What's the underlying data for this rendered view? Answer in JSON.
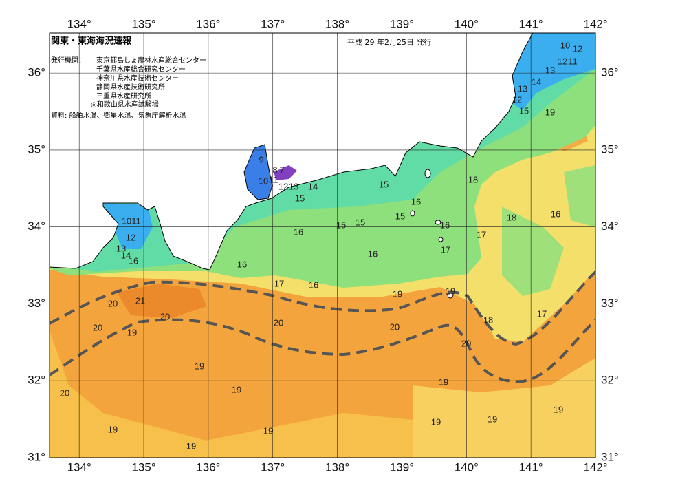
{
  "header": {
    "title": "関東・東海海況速報",
    "date": "平成 29 年2月25日 発行",
    "issuer_label": "発行機関：",
    "issuers": [
      "東京都島しょ農林水産総合センター",
      "千葉県水産総合研究センター",
      "神奈川県水産技術センター",
      "静岡県水産技術研究所",
      "三重県水産研究所",
      "◎和歌山県水産試験場"
    ],
    "sources": "資料: 船舶水温、衛星水温、気象庁解析水温"
  },
  "map": {
    "lonlim": [
      133.54,
      142
    ],
    "latlim": [
      31,
      36.52
    ],
    "lon_ticks": [
      {
        "value": 134,
        "label": "134°"
      },
      {
        "value": 135,
        "label": "135°"
      },
      {
        "value": 136,
        "label": "136°"
      },
      {
        "value": 137,
        "label": "137°"
      },
      {
        "value": 138,
        "label": "138°"
      },
      {
        "value": 139,
        "label": "139°"
      },
      {
        "value": 140,
        "label": "140°"
      },
      {
        "value": 141,
        "label": "141°"
      },
      {
        "value": 142,
        "label": "142°"
      }
    ],
    "lat_ticks": [
      {
        "value": 31,
        "label": "31°"
      },
      {
        "value": 32,
        "label": "32°"
      },
      {
        "value": 33,
        "label": "33°"
      },
      {
        "value": 34,
        "label": "34°"
      },
      {
        "value": 35,
        "label": "35°"
      },
      {
        "value": 36,
        "label": "36°"
      }
    ],
    "isotherm_labels": [
      10,
      12,
      12,
      11,
      13,
      14,
      13,
      12,
      15,
      19,
      9,
      10,
      11,
      8,
      7,
      12,
      13,
      14,
      15,
      15,
      18,
      16,
      15,
      18,
      16,
      15,
      15,
      16,
      16,
      17,
      17,
      16,
      16,
      17,
      16,
      19,
      19,
      18,
      17,
      10,
      11,
      12,
      13,
      14,
      16,
      21,
      20,
      20,
      20,
      19,
      20,
      20,
      20,
      19,
      19,
      19,
      20,
      19,
      19,
      19,
      19,
      19,
      19
    ]
  }
}
